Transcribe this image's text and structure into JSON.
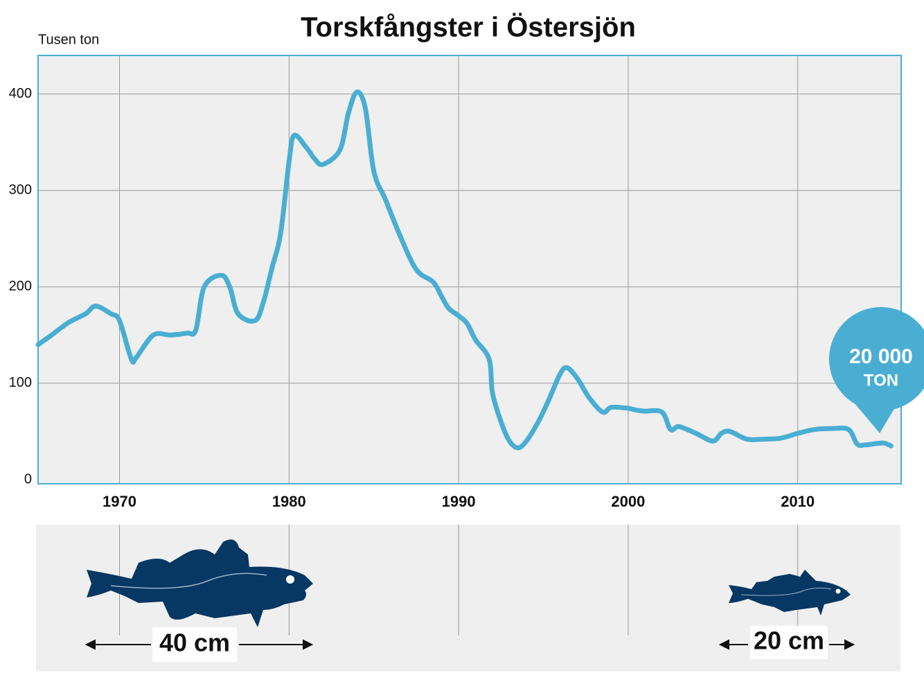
{
  "chart_data": {
    "type": "line",
    "title": "Torskfångster i Östersjön",
    "y_label": "Tusen ton",
    "x": [
      1965.2,
      1966,
      1967,
      1968,
      1968.6,
      1969.5,
      1970,
      1970.7,
      1971,
      1972,
      1973,
      1974,
      1974.5,
      1975,
      1976,
      1976.5,
      1977,
      1978,
      1978.5,
      1979,
      1979.5,
      1980,
      1980.3,
      1981,
      1981.5,
      1982,
      1983,
      1983.5,
      1984,
      1984.5,
      1985,
      1985.7,
      1986.5,
      1987.5,
      1988.5,
      1989,
      1989.4,
      1990,
      1990.5,
      1991,
      1991.8,
      1992,
      1992.5,
      1993,
      1993.5,
      1994,
      1994.7,
      1995.3,
      1996,
      1996.4,
      1997,
      1997.7,
      1998.5,
      1999,
      2000,
      2000.5,
      2001,
      2002,
      2002.5,
      2003,
      2004,
      2005,
      2005.5,
      2006,
      2007,
      2008,
      2009,
      2010,
      2011,
      2012,
      2013,
      2013.5,
      2014,
      2015,
      2015.5
    ],
    "values": [
      140,
      150,
      163,
      172,
      180,
      172,
      165,
      125,
      127,
      150,
      150,
      152,
      155,
      200,
      212,
      200,
      172,
      165,
      185,
      220,
      255,
      330,
      357,
      345,
      333,
      327,
      342,
      380,
      402,
      385,
      320,
      290,
      255,
      218,
      205,
      190,
      178,
      170,
      162,
      145,
      125,
      90,
      60,
      40,
      33,
      40,
      60,
      82,
      110,
      116,
      105,
      85,
      70,
      75,
      74,
      72,
      71,
      70,
      52,
      55,
      48,
      40,
      48,
      50,
      42,
      42,
      43,
      48,
      52,
      53,
      52,
      37,
      36,
      38,
      35
    ],
    "color": "#4aaed3",
    "xlim": [
      1965.2,
      2016.1
    ],
    "xticks": [
      1970,
      1980,
      1990,
      2000,
      2010
    ],
    "ylim": [
      0,
      440
    ],
    "yticks": [
      0,
      100,
      200,
      300,
      400
    ],
    "grid": true,
    "callout": {
      "value": "20 000",
      "unit": "TON"
    },
    "fish_labels": [
      "40 cm",
      "20 cm"
    ]
  }
}
